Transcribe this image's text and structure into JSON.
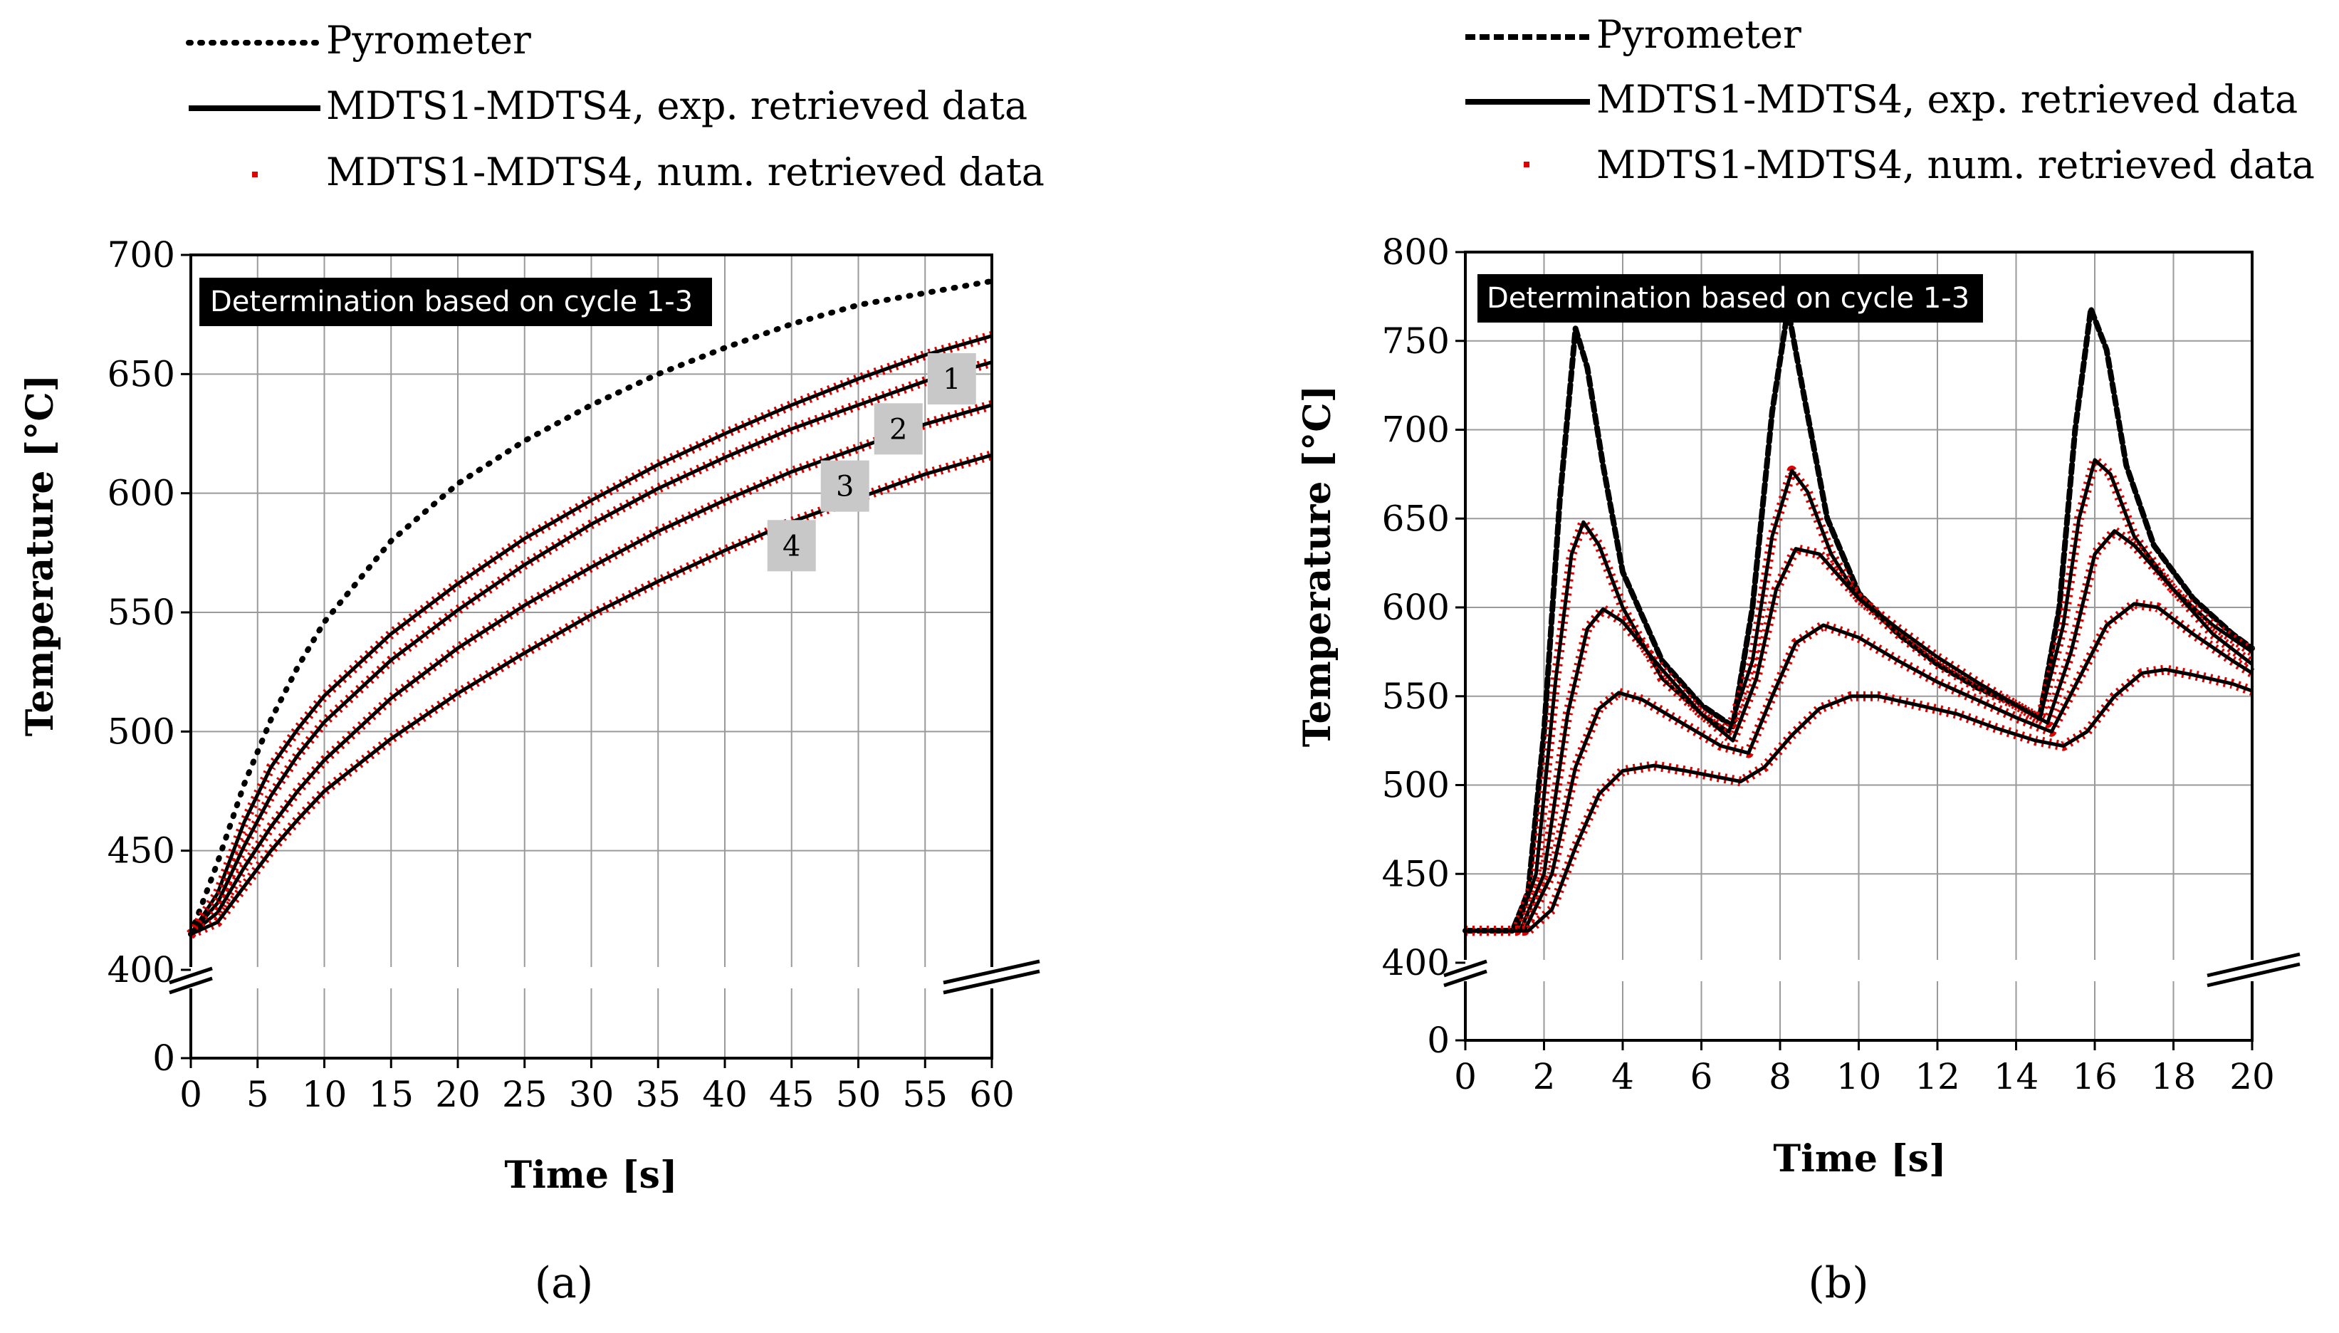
{
  "chart_data": [
    {
      "panel": "(a)",
      "type": "line",
      "legend": [
        {
          "label": "Pyrometer",
          "style": "dotted-black"
        },
        {
          "label": "MDTS1-MDTS4, exp. retrieved data",
          "style": "solid-black"
        },
        {
          "label": "MDTS1-MDTS4, num. retrieved data",
          "style": "dots-red"
        }
      ],
      "annotation": "Determination based on cycle 1-3",
      "xlabel": "Time [s]",
      "ylabel": "Temperature [°C]",
      "xlim": [
        0,
        60
      ],
      "ylim": [
        400,
        700
      ],
      "x_ticks": [
        "0",
        "5",
        "10",
        "15",
        "20",
        "25",
        "30",
        "35",
        "40",
        "45",
        "50",
        "55",
        "60"
      ],
      "y_ticks": [
        "400",
        "450",
        "500",
        "550",
        "600",
        "650",
        "700"
      ],
      "y_zero_label": "0",
      "x": [
        0,
        2,
        4,
        6,
        8,
        10,
        15,
        20,
        25,
        30,
        35,
        40,
        45,
        50,
        55,
        60
      ],
      "series": [
        {
          "name": "Pyrometer",
          "values": [
            415,
            445,
            478,
            505,
            527,
            546,
            580,
            604,
            622,
            637,
            650,
            661,
            671,
            679,
            684,
            689
          ]
        },
        {
          "name": "1",
          "values": [
            415,
            432,
            462,
            485,
            501,
            515,
            541,
            562,
            581,
            597,
            612,
            625,
            637,
            648,
            658,
            666
          ]
        },
        {
          "name": "2",
          "values": [
            415,
            428,
            452,
            473,
            490,
            504,
            530,
            551,
            570,
            587,
            602,
            615,
            627,
            637,
            647,
            655
          ]
        },
        {
          "name": "3",
          "values": [
            415,
            424,
            443,
            460,
            475,
            488,
            514,
            535,
            553,
            569,
            584,
            597,
            609,
            619,
            629,
            637
          ]
        },
        {
          "name": "4",
          "values": [
            415,
            420,
            435,
            450,
            463,
            475,
            497,
            516,
            533,
            549,
            563,
            576,
            588,
            598,
            608,
            616
          ]
        }
      ],
      "curve_labels": [
        {
          "text": "1",
          "x": 57,
          "y": 648
        },
        {
          "text": "2",
          "x": 53,
          "y": 627
        },
        {
          "text": "3",
          "x": 49,
          "y": 603
        },
        {
          "text": "4",
          "x": 45,
          "y": 578
        }
      ]
    },
    {
      "panel": "(b)",
      "type": "line",
      "legend": [
        {
          "label": "Pyrometer",
          "style": "dashed-black"
        },
        {
          "label": "MDTS1-MDTS4, exp. retrieved data",
          "style": "solid-black"
        },
        {
          "label": "MDTS1-MDTS4, num. retrieved data",
          "style": "dots-red"
        }
      ],
      "annotation": "Determination based on cycle 1-3",
      "xlabel": "Time [s]",
      "ylabel": "Temperature [°C]",
      "xlim": [
        0,
        20
      ],
      "ylim": [
        400,
        800
      ],
      "x_ticks": [
        "0",
        "2",
        "4",
        "6",
        "8",
        "10",
        "12",
        "14",
        "16",
        "18",
        "20"
      ],
      "y_ticks": [
        "400",
        "450",
        "500",
        "550",
        "600",
        "650",
        "700",
        "750",
        "800"
      ],
      "y_zero_label": "0",
      "series": [
        {
          "name": "Pyrometer",
          "points": [
            [
              0,
              418
            ],
            [
              1.2,
              418
            ],
            [
              1.6,
              440
            ],
            [
              2.0,
              530
            ],
            [
              2.4,
              660
            ],
            [
              2.8,
              757
            ],
            [
              3.1,
              735
            ],
            [
              3.5,
              680
            ],
            [
              4.0,
              620
            ],
            [
              5,
              570
            ],
            [
              6,
              545
            ],
            [
              6.8,
              533
            ],
            [
              7.3,
              600
            ],
            [
              7.8,
              710
            ],
            [
              8.2,
              768
            ],
            [
              8.6,
              720
            ],
            [
              9.2,
              650
            ],
            [
              10,
              608
            ],
            [
              11,
              585
            ],
            [
              12,
              568
            ],
            [
              13,
              555
            ],
            [
              14,
              545
            ],
            [
              14.6,
              538
            ],
            [
              15.1,
              600
            ],
            [
              15.5,
              700
            ],
            [
              15.9,
              768
            ],
            [
              16.3,
              745
            ],
            [
              16.8,
              680
            ],
            [
              17.5,
              635
            ],
            [
              18.5,
              605
            ],
            [
              19.5,
              585
            ],
            [
              20,
              577
            ]
          ]
        },
        {
          "name": "1",
          "points": [
            [
              0,
              418
            ],
            [
              1.3,
              418
            ],
            [
              1.8,
              450
            ],
            [
              2.3,
              560
            ],
            [
              2.7,
              630
            ],
            [
              3.0,
              648
            ],
            [
              3.4,
              635
            ],
            [
              4.0,
              600
            ],
            [
              5,
              560
            ],
            [
              6,
              540
            ],
            [
              6.7,
              530
            ],
            [
              7.3,
              570
            ],
            [
              7.8,
              640
            ],
            [
              8.3,
              677
            ],
            [
              8.7,
              665
            ],
            [
              9.3,
              630
            ],
            [
              10,
              605
            ],
            [
              11,
              585
            ],
            [
              12,
              568
            ],
            [
              13,
              555
            ],
            [
              14,
              545
            ],
            [
              14.6,
              537
            ],
            [
              15.2,
              590
            ],
            [
              15.6,
              650
            ],
            [
              16.0,
              683
            ],
            [
              16.4,
              675
            ],
            [
              17,
              640
            ],
            [
              18,
              610
            ],
            [
              19,
              590
            ],
            [
              20,
              575
            ]
          ]
        },
        {
          "name": "2",
          "points": [
            [
              0,
              418
            ],
            [
              1.4,
              418
            ],
            [
              2.0,
              450
            ],
            [
              2.6,
              540
            ],
            [
              3.1,
              588
            ],
            [
              3.5,
              599
            ],
            [
              4.0,
              592
            ],
            [
              5,
              565
            ],
            [
              6,
              540
            ],
            [
              6.8,
              525
            ],
            [
              7.4,
              560
            ],
            [
              7.9,
              610
            ],
            [
              8.4,
              633
            ],
            [
              9,
              630
            ],
            [
              10,
              605
            ],
            [
              11,
              588
            ],
            [
              12,
              572
            ],
            [
              13,
              558
            ],
            [
              14,
              545
            ],
            [
              14.8,
              535
            ],
            [
              15.4,
              575
            ],
            [
              16.0,
              630
            ],
            [
              16.5,
              643
            ],
            [
              17,
              635
            ],
            [
              18,
              610
            ],
            [
              19,
              585
            ],
            [
              20,
              568
            ]
          ]
        },
        {
          "name": "3",
          "points": [
            [
              0,
              418
            ],
            [
              1.5,
              418
            ],
            [
              2.2,
              450
            ],
            [
              2.8,
              510
            ],
            [
              3.4,
              543
            ],
            [
              3.9,
              552
            ],
            [
              4.5,
              548
            ],
            [
              5.5,
              535
            ],
            [
              6.5,
              522
            ],
            [
              7.2,
              518
            ],
            [
              7.8,
              550
            ],
            [
              8.4,
              580
            ],
            [
              9.1,
              590
            ],
            [
              10,
              583
            ],
            [
              11,
              570
            ],
            [
              12,
              558
            ],
            [
              13,
              548
            ],
            [
              14,
              538
            ],
            [
              14.9,
              530
            ],
            [
              15.6,
              560
            ],
            [
              16.3,
              590
            ],
            [
              17.0,
              602
            ],
            [
              17.6,
              600
            ],
            [
              18.5,
              585
            ],
            [
              19.5,
              570
            ],
            [
              20,
              563
            ]
          ]
        },
        {
          "name": "4",
          "points": [
            [
              0,
              418
            ],
            [
              1.6,
              418
            ],
            [
              2.2,
              430
            ],
            [
              2.8,
              465
            ],
            [
              3.4,
              495
            ],
            [
              4.0,
              508
            ],
            [
              4.8,
              511
            ],
            [
              5.6,
              508
            ],
            [
              6.3,
              505
            ],
            [
              7.0,
              502
            ],
            [
              7.6,
              510
            ],
            [
              8.3,
              528
            ],
            [
              9.0,
              543
            ],
            [
              9.8,
              550
            ],
            [
              10.5,
              550
            ],
            [
              11.5,
              545
            ],
            [
              12.5,
              540
            ],
            [
              13.5,
              532
            ],
            [
              14.5,
              525
            ],
            [
              15.2,
              522
            ],
            [
              15.8,
              530
            ],
            [
              16.5,
              550
            ],
            [
              17.2,
              563
            ],
            [
              17.8,
              565
            ],
            [
              18.5,
              562
            ],
            [
              19.5,
              557
            ],
            [
              20,
              553
            ]
          ]
        }
      ]
    }
  ]
}
